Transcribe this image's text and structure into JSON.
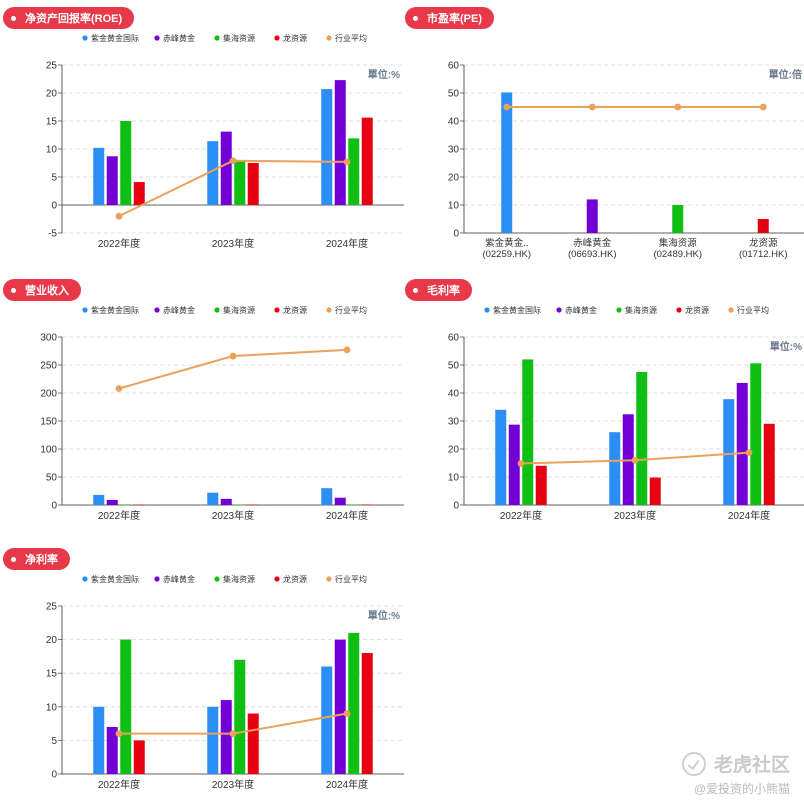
{
  "colors": {
    "zijin": "#2c8ef5",
    "chifeng": "#7200d6",
    "jihai": "#10bf14",
    "longzi": "#e60012",
    "industry": "#eba05c",
    "grid": "#d5d5d5",
    "axis": "#333333",
    "pill": "#e8394a"
  },
  "legend": [
    "紫金黄金国际",
    "赤峰黄金",
    "集海资源",
    "龙资源",
    "行业平均"
  ],
  "watermark": {
    "brand": "老虎社区",
    "user": "@爱投资的小熊猫",
    "icon": "tiger-logo-icon"
  },
  "chart_data": [
    {
      "id": "roe",
      "type": "bar",
      "title": "净资产回报率(ROE)",
      "unit_label": "單位:%",
      "categories": [
        "2022年度",
        "2023年度",
        "2024年度"
      ],
      "ylim": [
        -5,
        25
      ],
      "yticks": [
        -5,
        0,
        5,
        10,
        15,
        20,
        25
      ],
      "grid": true,
      "legend_position": "top",
      "series": [
        {
          "name": "紫金黄金国际",
          "values": [
            10.2,
            11.4,
            20.7
          ]
        },
        {
          "name": "赤峰黄金",
          "values": [
            8.7,
            13.1,
            22.3
          ]
        },
        {
          "name": "集海资源",
          "values": [
            15.0,
            8.0,
            11.9
          ]
        },
        {
          "name": "龙资源",
          "values": [
            4.1,
            7.5,
            15.6
          ]
        }
      ],
      "line": {
        "name": "行业平均",
        "values": [
          -2.0,
          7.9,
          7.7
        ]
      }
    },
    {
      "id": "pe",
      "type": "bar",
      "title": "市盈率(PE)",
      "unit_label": "單位:倍",
      "categories": [
        [
          "紫金黄金..",
          "(02259.HK)"
        ],
        [
          "赤峰黄金",
          "(06693.HK)"
        ],
        [
          "集海资源",
          "(02489.HK)"
        ],
        [
          "龙资源",
          "(01712.HK)"
        ]
      ],
      "ylim": [
        0,
        60
      ],
      "yticks": [
        0,
        10,
        20,
        30,
        40,
        50,
        60
      ],
      "grid": true,
      "bar_values": [
        50.2,
        12.0,
        10.0,
        5.0
      ],
      "line": {
        "name": "行业平均",
        "values": [
          45.0,
          45.0,
          45.0,
          45.0
        ]
      }
    },
    {
      "id": "revenue",
      "type": "bar",
      "title": "营业收入",
      "unit_label": "",
      "categories": [
        "2022年度",
        "2023年度",
        "2024年度"
      ],
      "ylim": [
        0,
        300
      ],
      "yticks": [
        0,
        50,
        100,
        150,
        200,
        250,
        300
      ],
      "grid": true,
      "legend_position": "top",
      "series": [
        {
          "name": "紫金黄金国际",
          "values": [
            18,
            22,
            30
          ]
        },
        {
          "name": "赤峰黄金",
          "values": [
            9,
            11,
            13
          ]
        },
        {
          "name": "集海资源",
          "values": [
            0.3,
            0.4,
            0.5
          ]
        },
        {
          "name": "龙资源",
          "values": [
            0.5,
            0.6,
            0.8
          ]
        }
      ],
      "line": {
        "name": "行业平均",
        "values": [
          208,
          266,
          277
        ]
      }
    },
    {
      "id": "gross_margin",
      "type": "bar",
      "title": "毛利率",
      "unit_label": "單位:%",
      "categories": [
        "2022年度",
        "2023年度",
        "2024年度"
      ],
      "ylim": [
        0,
        60
      ],
      "yticks": [
        0,
        10,
        20,
        30,
        40,
        50,
        60
      ],
      "grid": true,
      "legend_position": "top",
      "series": [
        {
          "name": "紫金黄金国际",
          "values": [
            34.0,
            26.0,
            37.8
          ]
        },
        {
          "name": "赤峰黄金",
          "values": [
            28.7,
            32.4,
            43.6
          ]
        },
        {
          "name": "集海资源",
          "values": [
            52.0,
            47.5,
            50.6
          ]
        },
        {
          "name": "龙资源",
          "values": [
            14.0,
            9.8,
            29.0
          ]
        }
      ],
      "line": {
        "name": "行业平均",
        "values": [
          14.8,
          16.0,
          18.7
        ]
      }
    },
    {
      "id": "net_margin",
      "type": "bar",
      "title": "净利率",
      "unit_label": "單位:%",
      "categories": [
        "2022年度",
        "2023年度",
        "2024年度"
      ],
      "ylim": [
        0,
        25
      ],
      "yticks": [
        0,
        5,
        10,
        15,
        20,
        25
      ],
      "grid": true,
      "legend_position": "top",
      "series": [
        {
          "name": "紫金黄金国际",
          "values": [
            10.0,
            10.0,
            16.0
          ]
        },
        {
          "name": "赤峰黄金",
          "values": [
            7.0,
            11.0,
            20.0
          ]
        },
        {
          "name": "集海资源",
          "values": [
            20.0,
            17.0,
            21.0
          ]
        },
        {
          "name": "龙资源",
          "values": [
            5.0,
            9.0,
            18.0
          ]
        }
      ],
      "line": {
        "name": "行业平均",
        "values": [
          6.0,
          6.0,
          9.0
        ]
      }
    }
  ]
}
